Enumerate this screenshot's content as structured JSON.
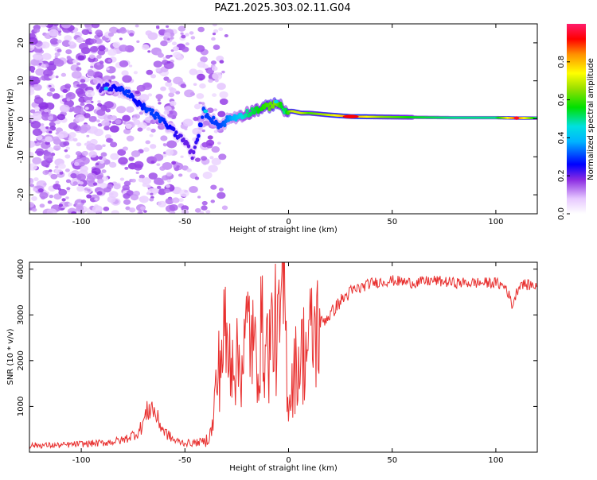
{
  "title": "PAZ1.2025.303.02.11.G04",
  "colors": {
    "snr_line": "#e8302f",
    "spectrum_low": "#e4d2fb",
    "spectrum_mid": "#7a2ee6",
    "spectrum_ridge": "#1f8fff"
  },
  "chart_data": [
    {
      "type": "heatmap",
      "title": "PAZ1.2025.303.02.11.G04",
      "xlabel": "Height of straight line (km)",
      "ylabel": "Frequency (Hz)",
      "xlim": [
        -125,
        120
      ],
      "ylim": [
        -25,
        25
      ],
      "xticks": [
        -100,
        -50,
        0,
        50,
        100
      ],
      "yticks": [
        -20,
        -10,
        0,
        10,
        20
      ],
      "ridge": {
        "x": [
          -92,
          -85,
          -78,
          -73,
          -68,
          -62,
          -56,
          -50,
          -46,
          -41,
          -37,
          -33,
          -29,
          -25,
          -20,
          -15,
          -10,
          -6,
          -2,
          2,
          6,
          10,
          20,
          30,
          45,
          60,
          80,
          100,
          110,
          120
        ],
        "y": [
          8,
          8.5,
          7,
          4,
          2.5,
          0,
          -3,
          -6,
          -10,
          2,
          0,
          -2,
          0,
          0.5,
          1.5,
          2.5,
          3,
          4.5,
          2,
          2,
          1.5,
          1.5,
          1,
          0.6,
          0.5,
          0.4,
          0.3,
          0.3,
          0.2,
          0.2
        ],
        "amplitude": [
          0.2,
          0.25,
          0.3,
          0.25,
          0.3,
          0.3,
          0.25,
          0.2,
          0.2,
          0.3,
          0.3,
          0.3,
          0.35,
          0.4,
          0.5,
          0.55,
          0.6,
          0.65,
          0.5,
          0.7,
          0.7,
          0.6,
          0.7,
          0.85,
          0.65,
          0.55,
          0.5,
          0.5,
          0.9,
          0.5
        ]
      },
      "colorbar": {
        "label": "Normalized spectral amplitude",
        "range": [
          0,
          1
        ],
        "ticks": [
          "0.0",
          "0.2",
          "0.4",
          "0.6",
          "0.8"
        ],
        "tick_values": [
          0,
          0.2,
          0.4,
          0.6,
          0.8
        ]
      }
    },
    {
      "type": "line",
      "xlabel": "Height of straight line (km)",
      "ylabel": "SNR (10 * v/v)",
      "xlim": [
        -125,
        120
      ],
      "ylim": [
        0,
        4150
      ],
      "xticks": [
        -100,
        -50,
        0,
        50,
        100
      ],
      "yticks": [
        1000,
        2000,
        3000,
        4000
      ],
      "series": [
        {
          "name": "SNR",
          "x": [
            -125,
            -110,
            -100,
            -90,
            -80,
            -72,
            -68,
            -66,
            -63,
            -60,
            -55,
            -50,
            -45,
            -40,
            -37,
            -35,
            -33,
            -31,
            -29,
            -27,
            -25,
            -22,
            -19,
            -16,
            -13,
            -10,
            -7,
            -5,
            -3,
            -2,
            -1,
            0,
            3,
            6,
            10,
            15,
            20,
            25,
            30,
            35,
            40,
            50,
            60,
            70,
            80,
            90,
            100,
            105,
            108,
            110,
            112,
            115,
            120
          ],
          "y": [
            150,
            150,
            180,
            200,
            260,
            450,
            900,
            1000,
            700,
            450,
            250,
            200,
            200,
            250,
            450,
            1400,
            2000,
            2600,
            2000,
            2400,
            1900,
            2100,
            2800,
            2000,
            2600,
            2200,
            2800,
            2400,
            3200,
            3800,
            2000,
            1100,
            1800,
            2100,
            2400,
            2800,
            3000,
            3300,
            3500,
            3600,
            3700,
            3750,
            3700,
            3750,
            3700,
            3700,
            3700,
            3600,
            3200,
            3500,
            3700,
            3650,
            3650
          ]
        }
      ]
    }
  ]
}
